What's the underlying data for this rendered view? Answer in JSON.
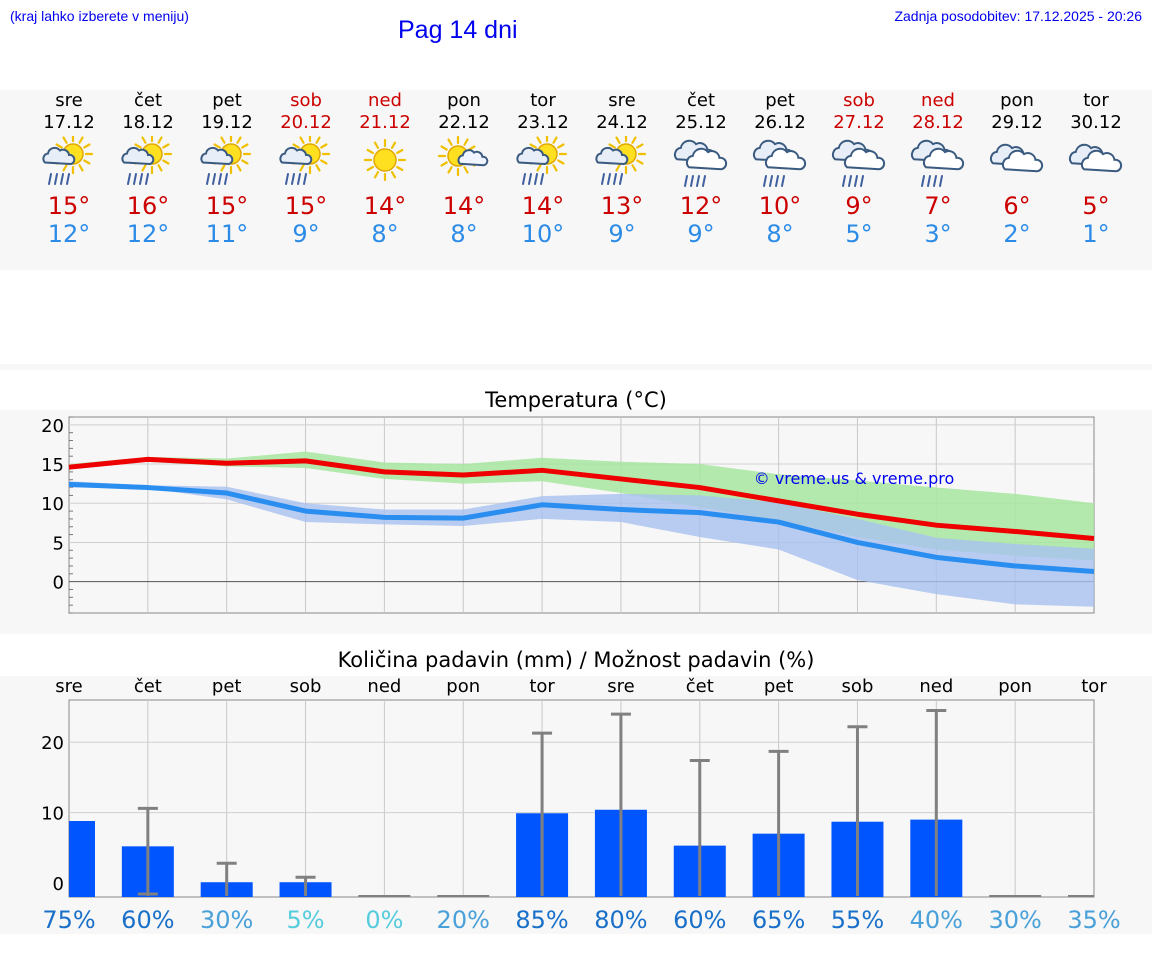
{
  "header": {
    "hint": "(kraj lahko izberete v meniju)",
    "title": "Pag 14 dni",
    "updated": "Zadnja posodobitev: 17.12.2025 - 20:26"
  },
  "forecast": [
    {
      "day": "sre",
      "date": "17.12",
      "max": "15°",
      "min": "12°",
      "weekend": false,
      "icon": "sun-cloud-rain-icon",
      "sun": true,
      "cloud": true,
      "rain": true
    },
    {
      "day": "čet",
      "date": "18.12",
      "max": "16°",
      "min": "12°",
      "weekend": false,
      "icon": "sun-cloud-rain-icon",
      "sun": true,
      "cloud": true,
      "rain": true
    },
    {
      "day": "pet",
      "date": "19.12",
      "max": "15°",
      "min": "11°",
      "weekend": false,
      "icon": "sun-cloud-rain-icon",
      "sun": true,
      "cloud": true,
      "rain": true
    },
    {
      "day": "sob",
      "date": "20.12",
      "max": "15°",
      "min": "9°",
      "weekend": true,
      "icon": "sun-cloud-rain-icon",
      "sun": true,
      "cloud": true,
      "rain": true
    },
    {
      "day": "ned",
      "date": "21.12",
      "max": "14°",
      "min": "8°",
      "weekend": true,
      "icon": "sun-icon",
      "sun": true,
      "cloud": false,
      "rain": false
    },
    {
      "day": "pon",
      "date": "22.12",
      "max": "14°",
      "min": "8°",
      "weekend": false,
      "icon": "sun-small-cloud-icon",
      "sun": true,
      "cloud": true,
      "rain": false
    },
    {
      "day": "tor",
      "date": "23.12",
      "max": "14°",
      "min": "10°",
      "weekend": false,
      "icon": "sun-cloud-rain-icon",
      "sun": true,
      "cloud": true,
      "rain": true
    },
    {
      "day": "sre",
      "date": "24.12",
      "max": "13°",
      "min": "9°",
      "weekend": false,
      "icon": "sun-cloud-rain-icon",
      "sun": true,
      "cloud": true,
      "rain": true
    },
    {
      "day": "čet",
      "date": "25.12",
      "max": "12°",
      "min": "9°",
      "weekend": false,
      "icon": "cloud-rain-icon",
      "sun": false,
      "cloud": true,
      "rain": true
    },
    {
      "day": "pet",
      "date": "26.12",
      "max": "10°",
      "min": "8°",
      "weekend": false,
      "icon": "cloud-rain-icon",
      "sun": false,
      "cloud": true,
      "rain": true
    },
    {
      "day": "sob",
      "date": "27.12",
      "max": "9°",
      "min": "5°",
      "weekend": true,
      "icon": "cloud-rain-icon",
      "sun": false,
      "cloud": true,
      "rain": true
    },
    {
      "day": "ned",
      "date": "28.12",
      "max": "7°",
      "min": "3°",
      "weekend": true,
      "icon": "cloud-rain-icon",
      "sun": false,
      "cloud": true,
      "rain": true
    },
    {
      "day": "pon",
      "date": "29.12",
      "max": "6°",
      "min": "2°",
      "weekend": false,
      "icon": "cloud-icon",
      "sun": false,
      "cloud": true,
      "rain": false
    },
    {
      "day": "tor",
      "date": "30.12",
      "max": "5°",
      "min": "1°",
      "weekend": false,
      "icon": "cloud-icon",
      "sun": false,
      "cloud": true,
      "rain": false
    }
  ],
  "colors": {
    "link": "#0000ee",
    "max_temp": "#ee0000",
    "min_temp": "#2a8ef0",
    "max_band": "#a8e6a0",
    "min_band": "#a8c0f0",
    "bar": "#0055ff",
    "error_bar": "#808080"
  },
  "chart_data": [
    {
      "type": "line",
      "title": "Temperatura (°C)",
      "watermark": "© vreme.us & vreme.pro",
      "ylim": [
        -4,
        21
      ],
      "yticks": [
        0,
        5,
        10,
        15,
        20
      ],
      "x": [
        0,
        1,
        2,
        3,
        4,
        5,
        6,
        7,
        8,
        9,
        10,
        11,
        12,
        13
      ],
      "series": [
        {
          "name": "max",
          "values": [
            14.6,
            15.6,
            15.1,
            15.4,
            14.0,
            13.6,
            14.2,
            13.1,
            12.0,
            10.3,
            8.6,
            7.2,
            6.4,
            5.5
          ],
          "band_low": [
            14.6,
            15.3,
            14.7,
            14.5,
            13.1,
            12.5,
            12.8,
            11.3,
            9.5,
            7.8,
            5.7,
            4.1,
            3.3,
            2.7
          ],
          "band_high": [
            15.0,
            15.9,
            15.7,
            16.6,
            15.2,
            15.0,
            15.8,
            15.3,
            15.0,
            13.7,
            12.9,
            12.0,
            11.2,
            10.0
          ]
        },
        {
          "name": "min",
          "values": [
            12.4,
            12.0,
            11.3,
            9.0,
            8.2,
            8.1,
            9.8,
            9.2,
            8.8,
            7.6,
            5.0,
            3.1,
            2.0,
            1.3
          ],
          "band_low": [
            12.0,
            11.9,
            10.5,
            7.6,
            7.3,
            7.1,
            8.0,
            7.6,
            5.7,
            4.1,
            0.2,
            -1.6,
            -2.9,
            -3.2
          ],
          "band_high": [
            12.8,
            12.3,
            12.1,
            10.0,
            9.2,
            9.2,
            10.9,
            11.2,
            11.0,
            10.1,
            8.0,
            5.6,
            4.8,
            4.2
          ]
        }
      ]
    },
    {
      "type": "bar",
      "title": "Količina padavin (mm) / Možnost padavin (%)",
      "categories": [
        "sre",
        "čet",
        "pet",
        "sob",
        "ned",
        "pon",
        "tor",
        "sre",
        "čet",
        "pet",
        "sob",
        "ned",
        "pon",
        "tor"
      ],
      "values": [
        8.8,
        5.2,
        0.1,
        0.1,
        0,
        0,
        9.9,
        10.4,
        5.3,
        7.0,
        8.7,
        9.0,
        0,
        0
      ],
      "error_low": [
        0,
        0,
        0,
        0,
        0,
        0,
        0,
        0,
        0,
        0,
        0,
        0,
        0,
        0
      ],
      "error_high": [
        0,
        10.6,
        2.8,
        0.8,
        0,
        0,
        21.3,
        24.0,
        17.4,
        18.7,
        22.2,
        24.5,
        0,
        0
      ],
      "probability": [
        "75%",
        "60%",
        "30%",
        "5%",
        "0%",
        "20%",
        "85%",
        "80%",
        "60%",
        "65%",
        "55%",
        "40%",
        "30%",
        "35%"
      ],
      "prob_colors": [
        "#1a70c8",
        "#1a70c8",
        "#4aa0d8",
        "#55ccdd",
        "#55ccdd",
        "#4aa0d8",
        "#1a70c8",
        "#1a70c8",
        "#1a70c8",
        "#1a70c8",
        "#1a70c8",
        "#4aa0d8",
        "#4aa0d8",
        "#4aa0d8"
      ],
      "ylim": [
        -2,
        26
      ],
      "yticks": [
        0,
        10,
        20
      ]
    }
  ]
}
